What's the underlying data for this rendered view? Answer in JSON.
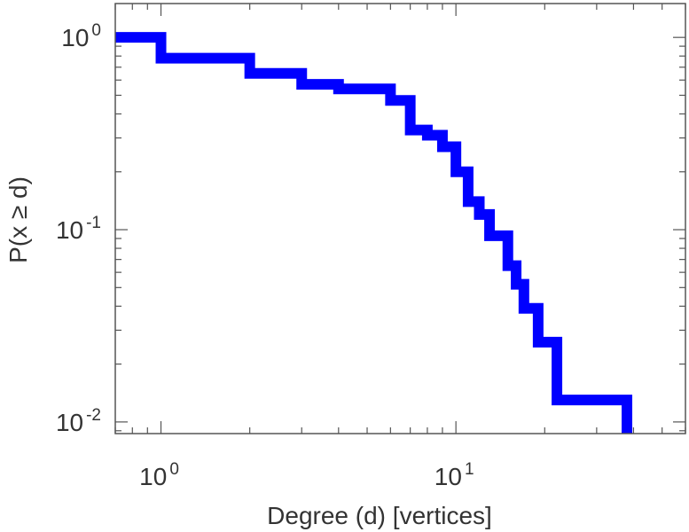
{
  "chart_data": {
    "type": "line",
    "step": true,
    "xscale": "log",
    "yscale": "log",
    "xlim": [
      0.7,
      60
    ],
    "ylim": [
      0.0087,
      1.5
    ],
    "grid": false,
    "xlabel": "Degree (d) [vertices]",
    "ylabel": "P(x ≥ d)",
    "x_ticks": [
      {
        "value": 1,
        "base": "10",
        "exp": "0"
      },
      {
        "value": 10,
        "base": "10",
        "exp": "1"
      }
    ],
    "y_ticks": [
      {
        "value": 1,
        "base": "10",
        "exp": "0"
      },
      {
        "value": 0.1,
        "base": "10",
        "exp": "-1"
      },
      {
        "value": 0.01,
        "base": "10",
        "exp": "-2"
      }
    ],
    "series": [
      {
        "color": "#0000ff",
        "x": [
          0.7,
          1,
          2,
          3,
          4,
          6,
          7,
          8,
          9,
          10,
          11,
          12,
          13,
          15,
          16,
          17,
          19,
          22,
          38,
          38
        ],
        "y": [
          1.0,
          0.78,
          0.65,
          0.57,
          0.54,
          0.47,
          0.33,
          0.31,
          0.27,
          0.2,
          0.14,
          0.12,
          0.093,
          0.065,
          0.052,
          0.039,
          0.026,
          0.013,
          0.013,
          0.0087
        ]
      }
    ]
  }
}
